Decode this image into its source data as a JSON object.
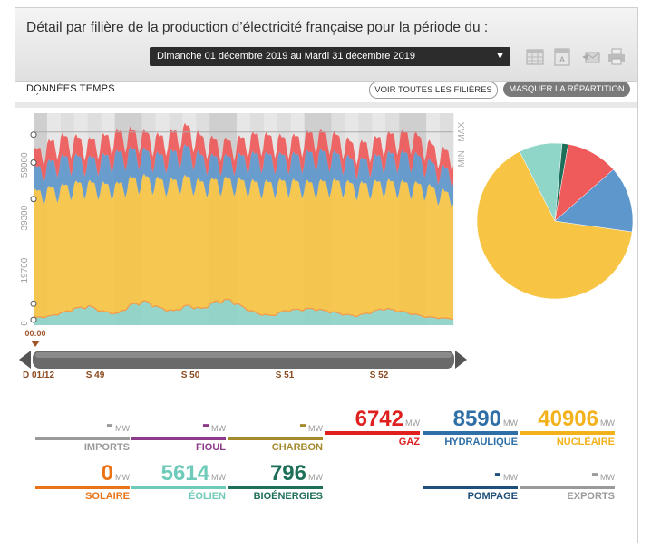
{
  "header": {
    "title": "Détail par filière de la production d’électricité française pour la période du :",
    "period": "Dimanche 01 décembre 2019 au Mardi 31 décembre 2019"
  },
  "toolbar": {
    "realtime_label": "DONNÉES TEMPS RÉEL",
    "show_all_label": "VOIR TOUTES LES FILIÈRES",
    "hide_split_label": "MASQUER LA RÉPARTITION"
  },
  "chart_data": {
    "type": "area",
    "title": "",
    "stacked": true,
    "y_ticks": [
      "0",
      "19700",
      "39300",
      "59000"
    ],
    "ylim": [
      0,
      79000
    ],
    "right_labels": [
      "MAX",
      "MIN"
    ],
    "cursor_time": "00:00",
    "x_tick_labels": [
      "D 01/12",
      "S 49",
      "S 50",
      "S 51",
      "S 52"
    ],
    "days": 31,
    "series": [
      {
        "name": "Éolien",
        "color": "#8fd5c8",
        "daily_mw": [
          2800,
          3200,
          4500,
          6200,
          7000,
          5000,
          4200,
          7600,
          8800,
          6400,
          5200,
          7300,
          6000,
          8700,
          9400,
          6600,
          4300,
          3500,
          5400,
          5800,
          6100,
          5200,
          4200,
          3400,
          4600,
          6200,
          5400,
          4300,
          3100,
          2700,
          2400
        ]
      },
      {
        "name": "Nucléaire",
        "daily_mw": [
          45500,
          46200,
          45800,
          45200,
          44600,
          46000,
          46800,
          45600,
          45000,
          46300,
          47200,
          46400,
          45800,
          44000,
          43500,
          45700,
          47400,
          48200,
          46900,
          46100,
          45400,
          47000,
          48000,
          47500,
          46800,
          45900,
          46400,
          47100,
          47700,
          46000,
          45300
        ],
        "color": "#f7c444"
      },
      {
        "name": "Hydraulique",
        "daily_mw": [
          8200,
          9300,
          10600,
          9700,
          8800,
          10200,
          11400,
          10500,
          9400,
          8800,
          10300,
          11000,
          9600,
          8300,
          8000,
          9100,
          10400,
          9900,
          9200,
          9800,
          11200,
          10600,
          9400,
          8500,
          8800,
          9700,
          10400,
          10900,
          9300,
          8600,
          8300
        ],
        "color": "#5e97cc"
      },
      {
        "name": "Gaz",
        "daily_mw": [
          6200,
          7100,
          7400,
          6800,
          6300,
          7000,
          7600,
          6900,
          6400,
          6700,
          7300,
          7500,
          6900,
          6000,
          5700,
          6400,
          7100,
          6800,
          6200,
          6600,
          7200,
          7000,
          6500,
          5900,
          6100,
          6800,
          7300,
          7500,
          6700,
          6300,
          6800
        ],
        "color": "#ef5a5a"
      }
    ],
    "pie": [
      {
        "label": "NUCLÉAIRE",
        "value": 40906,
        "color": "#f7c444"
      },
      {
        "label": "ÉOLIEN",
        "value": 5614,
        "color": "#8fd5c8"
      },
      {
        "label": "BIOÉNERGIES",
        "value": 796,
        "color": "#1e6f5a"
      },
      {
        "label": "GAZ",
        "value": 6742,
        "color": "#ef5a5a"
      },
      {
        "label": "HYDRAULIQUE",
        "value": 8590,
        "color": "#5e97cc"
      }
    ]
  },
  "tiles": [
    {
      "key": "imports",
      "value": "-",
      "unit": "MW",
      "label": "IMPORTS",
      "color": "#9a9a9a",
      "value_color": "#9a9a9a"
    },
    {
      "key": "fioul",
      "value": "-",
      "unit": "MW",
      "label": "FIOUL",
      "color": "#8e3a8a",
      "value_color": "#8e3a8a"
    },
    {
      "key": "charbon",
      "value": "-",
      "unit": "MW",
      "label": "CHARBON",
      "color": "#a48a2c",
      "value_color": "#a48a2c"
    },
    {
      "key": "gaz",
      "value": "6742",
      "unit": "MW",
      "label": "GAZ",
      "color": "#e01f1f",
      "value_color": "#e01f1f"
    },
    {
      "key": "hydraulique",
      "value": "8590",
      "unit": "MW",
      "label": "HYDRAULIQUE",
      "color": "#2e6fa8",
      "value_color": "#2e6fa8"
    },
    {
      "key": "nucleaire",
      "value": "40906",
      "unit": "MW",
      "label": "NUCLÉAIRE",
      "color": "#f3b21b",
      "value_color": "#f3b21b"
    },
    {
      "key": "solaire",
      "value": "0",
      "unit": "MW",
      "label": "SOLAIRE",
      "color": "#e97316",
      "value_color": "#e97316"
    },
    {
      "key": "eolien",
      "value": "5614",
      "unit": "MW",
      "label": "ÉOLIEN",
      "color": "#6fcbb9",
      "value_color": "#6fcbb9"
    },
    {
      "key": "bioenergies",
      "value": "796",
      "unit": "MW",
      "label": "BIOÉNERGIES",
      "color": "#1e6f5a",
      "value_color": "#1e6f5a"
    },
    {
      "key": "pompage",
      "value": "-",
      "unit": "MW",
      "label": "POMPAGE",
      "color": "#1d4f7a",
      "value_color": "#1d4f7a"
    },
    {
      "key": "exports",
      "value": "-",
      "unit": "MW",
      "label": "EXPORTS",
      "color": "#9a9a9a",
      "value_color": "#9a9a9a"
    }
  ]
}
